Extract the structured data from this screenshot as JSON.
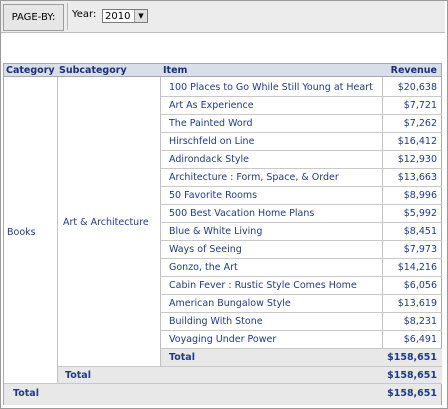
{
  "pageby": {
    "label": "PAGE-BY:",
    "year_label": "Year:",
    "year_value": "2010",
    "arrow_icon": "chevron-down-icon"
  },
  "headers": {
    "category": "Category",
    "subcategory": "Subcategory",
    "item": "Item",
    "revenue": "Revenue"
  },
  "category": "Books",
  "subcategory": "Art & Architecture",
  "items": [
    {
      "name": "100 Places to Go While Still Young at Heart",
      "revenue": "$20,638"
    },
    {
      "name": "Art As Experience",
      "revenue": "$7,721"
    },
    {
      "name": "The Painted Word",
      "revenue": "$7,262"
    },
    {
      "name": "Hirschfeld on Line",
      "revenue": "$16,412"
    },
    {
      "name": "Adirondack Style",
      "revenue": "$12,930"
    },
    {
      "name": "Architecture : Form, Space, & Order",
      "revenue": "$13,663"
    },
    {
      "name": "50 Favorite Rooms",
      "revenue": "$8,996"
    },
    {
      "name": "500 Best Vacation Home Plans",
      "revenue": "$5,992"
    },
    {
      "name": "Blue & White Living",
      "revenue": "$8,451"
    },
    {
      "name": "Ways of Seeing",
      "revenue": "$7,973"
    },
    {
      "name": "Gonzo, the Art",
      "revenue": "$14,216"
    },
    {
      "name": "Cabin Fever : Rustic Style Comes Home",
      "revenue": "$6,056"
    },
    {
      "name": "American Bungalow Style",
      "revenue": "$13,619"
    },
    {
      "name": "Building With Stone",
      "revenue": "$8,231"
    },
    {
      "name": "Voyaging Under Power",
      "revenue": "$6,491"
    }
  ],
  "totals": {
    "item_total_label": "Total",
    "item_total_value": "$158,651",
    "subcategory_total_label": "Total",
    "subcategory_total_value": "$158,651",
    "category_total_label": "Total",
    "category_total_value": "$158,651"
  }
}
